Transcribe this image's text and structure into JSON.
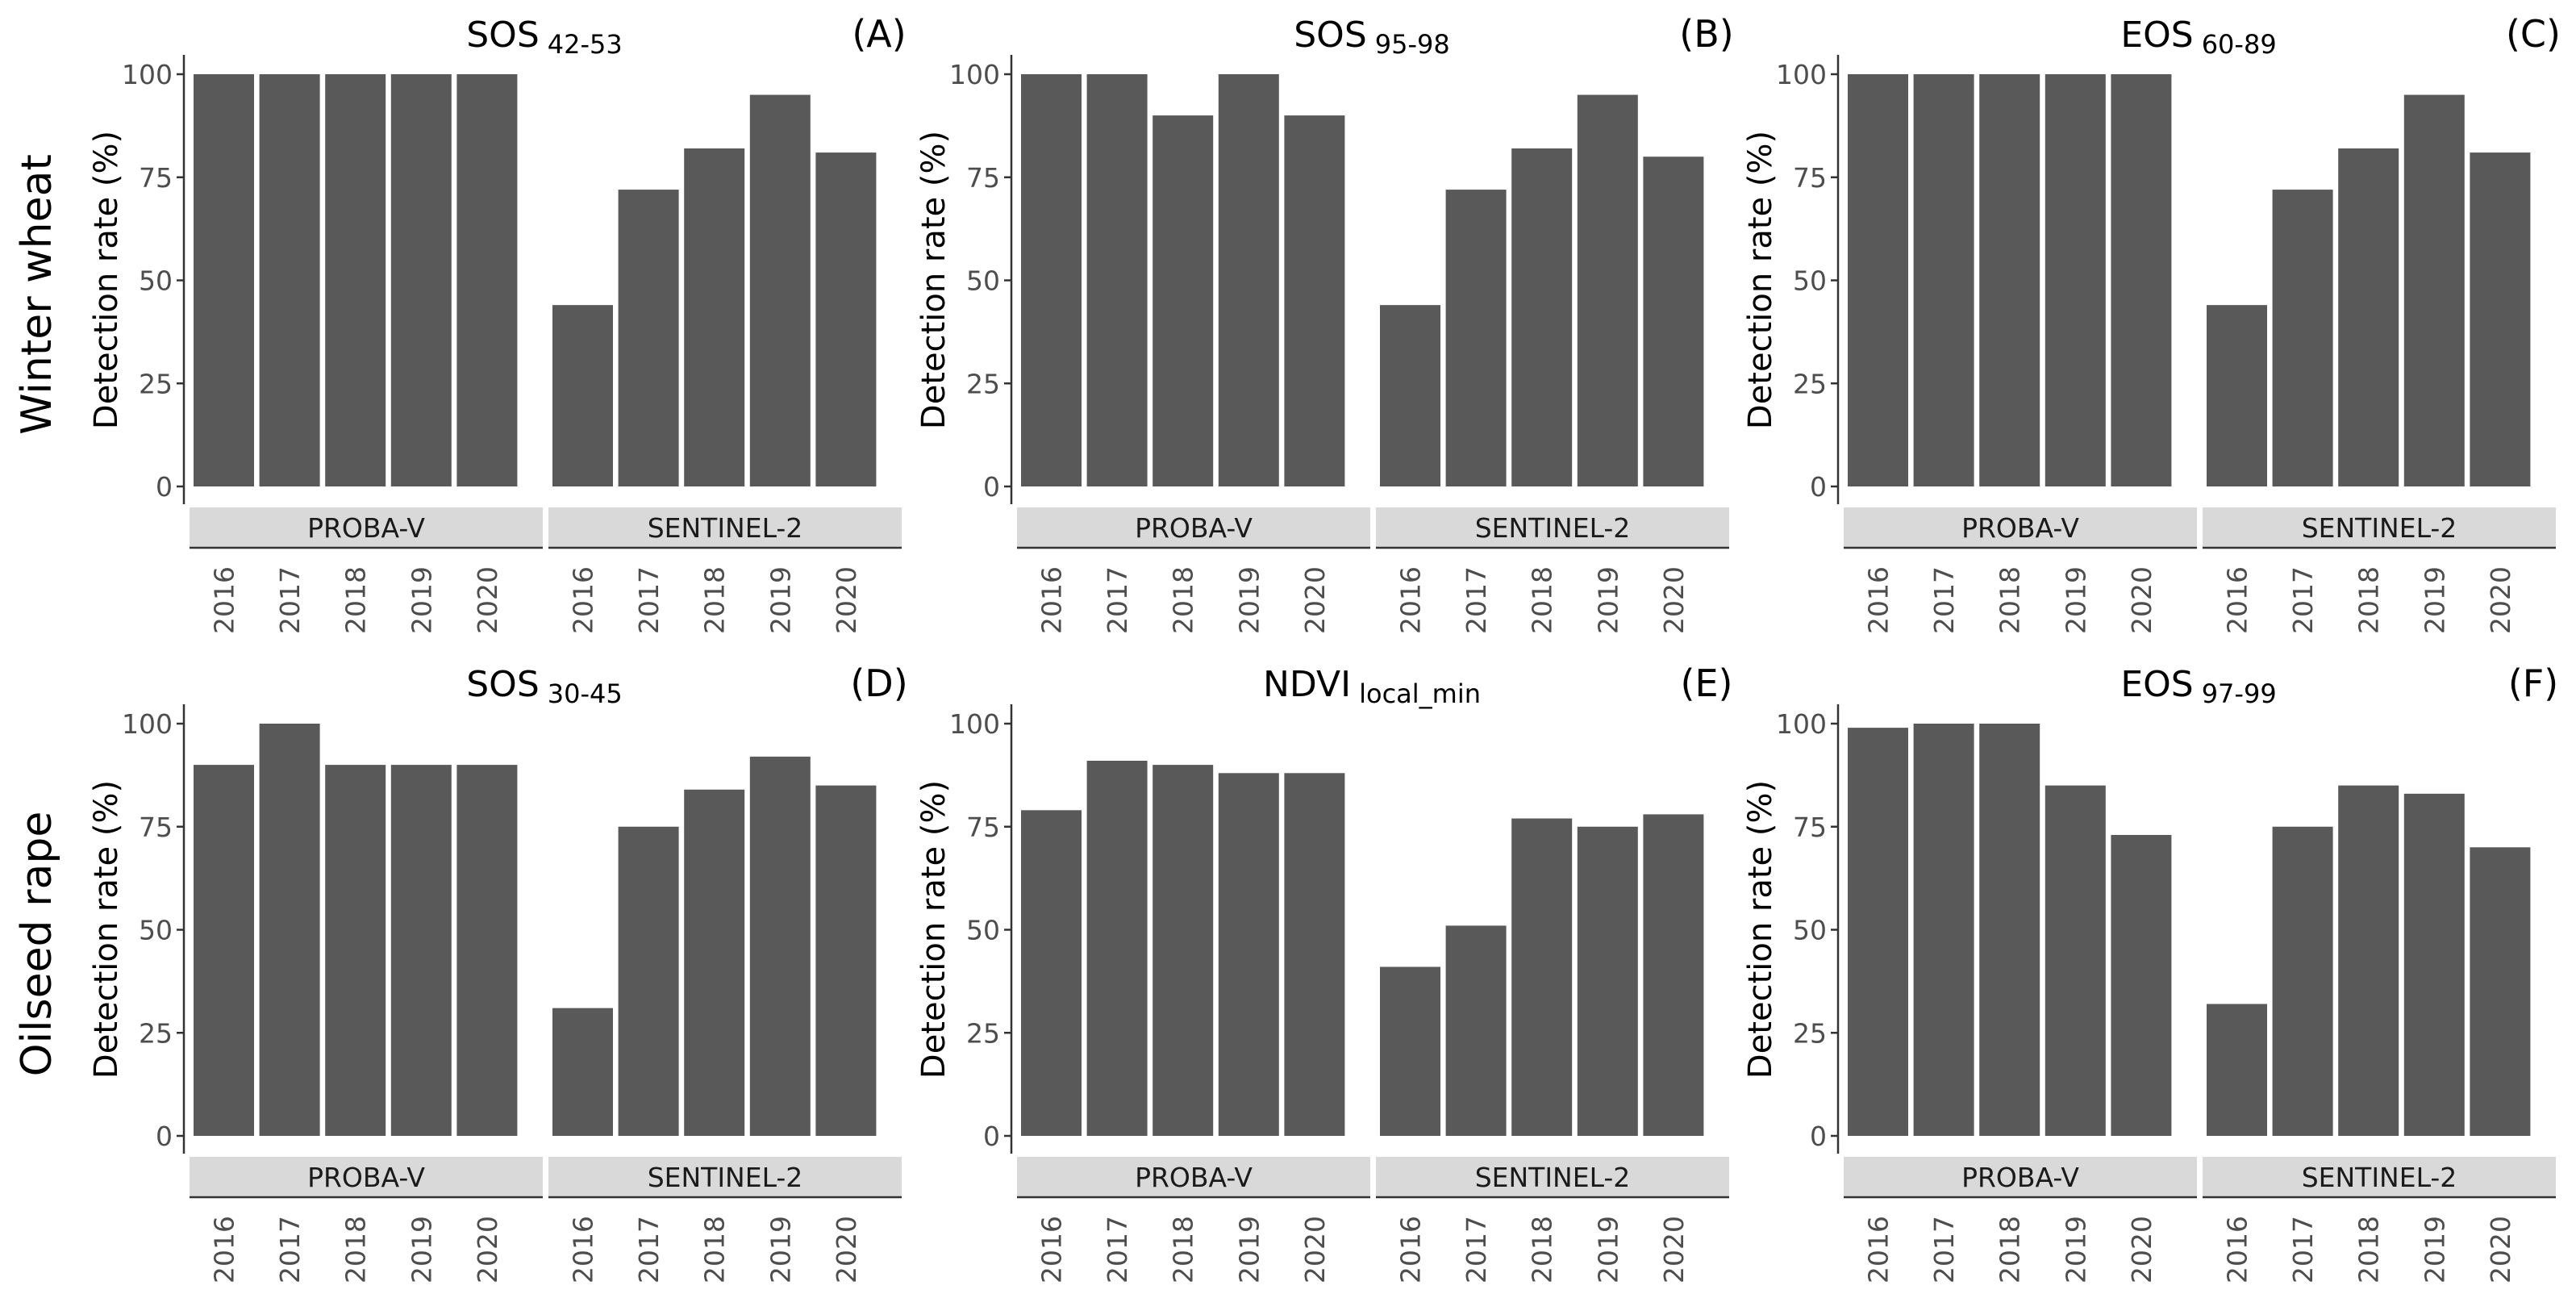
{
  "row_labels": [
    "Winter wheat",
    "Oilseed rape"
  ],
  "chart_data": [
    {
      "panel": "(A)",
      "title_main": "SOS",
      "title_sub": "42-53",
      "type": "bar",
      "ylabel": "Detection rate (%)",
      "ylim": [
        0,
        100
      ],
      "yticks": [
        0,
        25,
        50,
        75,
        100
      ],
      "grid": false,
      "facets": [
        {
          "name": "PROBA-V",
          "categories": [
            "2016",
            "2017",
            "2018",
            "2019",
            "2020"
          ],
          "values": [
            100,
            100,
            100,
            100,
            100
          ]
        },
        {
          "name": "SENTINEL-2",
          "categories": [
            "2016",
            "2017",
            "2018",
            "2019",
            "2020"
          ],
          "values": [
            44,
            72,
            82,
            95,
            81
          ]
        }
      ]
    },
    {
      "panel": "(B)",
      "title_main": "SOS",
      "title_sub": "95-98",
      "type": "bar",
      "ylabel": "Detection rate (%)",
      "ylim": [
        0,
        100
      ],
      "yticks": [
        0,
        25,
        50,
        75,
        100
      ],
      "grid": false,
      "facets": [
        {
          "name": "PROBA-V",
          "categories": [
            "2016",
            "2017",
            "2018",
            "2019",
            "2020"
          ],
          "values": [
            100,
            100,
            90,
            100,
            90
          ]
        },
        {
          "name": "SENTINEL-2",
          "categories": [
            "2016",
            "2017",
            "2018",
            "2019",
            "2020"
          ],
          "values": [
            44,
            72,
            82,
            95,
            80
          ]
        }
      ]
    },
    {
      "panel": "(C)",
      "title_main": "EOS",
      "title_sub": "60-89",
      "type": "bar",
      "ylabel": "Detection rate (%)",
      "ylim": [
        0,
        100
      ],
      "yticks": [
        0,
        25,
        50,
        75,
        100
      ],
      "grid": false,
      "facets": [
        {
          "name": "PROBA-V",
          "categories": [
            "2016",
            "2017",
            "2018",
            "2019",
            "2020"
          ],
          "values": [
            100,
            100,
            100,
            100,
            100
          ]
        },
        {
          "name": "SENTINEL-2",
          "categories": [
            "2016",
            "2017",
            "2018",
            "2019",
            "2020"
          ],
          "values": [
            44,
            72,
            82,
            95,
            81
          ]
        }
      ]
    },
    {
      "panel": "(D)",
      "title_main": "SOS",
      "title_sub": "30-45",
      "type": "bar",
      "ylabel": "Detection rate (%)",
      "ylim": [
        0,
        100
      ],
      "yticks": [
        0,
        25,
        50,
        75,
        100
      ],
      "grid": false,
      "facets": [
        {
          "name": "PROBA-V",
          "categories": [
            "2016",
            "2017",
            "2018",
            "2019",
            "2020"
          ],
          "values": [
            90,
            100,
            90,
            90,
            90
          ]
        },
        {
          "name": "SENTINEL-2",
          "categories": [
            "2016",
            "2017",
            "2018",
            "2019",
            "2020"
          ],
          "values": [
            31,
            75,
            84,
            92,
            85
          ]
        }
      ]
    },
    {
      "panel": "(E)",
      "title_main": "NDVI",
      "title_sub": "local_min",
      "type": "bar",
      "ylabel": "Detection rate (%)",
      "ylim": [
        0,
        100
      ],
      "yticks": [
        0,
        25,
        50,
        75,
        100
      ],
      "grid": false,
      "facets": [
        {
          "name": "PROBA-V",
          "categories": [
            "2016",
            "2017",
            "2018",
            "2019",
            "2020"
          ],
          "values": [
            79,
            91,
            90,
            88,
            88
          ]
        },
        {
          "name": "SENTINEL-2",
          "categories": [
            "2016",
            "2017",
            "2018",
            "2019",
            "2020"
          ],
          "values": [
            41,
            51,
            77,
            75,
            78
          ]
        }
      ]
    },
    {
      "panel": "(F)",
      "title_main": "EOS",
      "title_sub": "97-99",
      "type": "bar",
      "ylabel": "Detection rate (%)",
      "ylim": [
        0,
        100
      ],
      "yticks": [
        0,
        25,
        50,
        75,
        100
      ],
      "grid": false,
      "facets": [
        {
          "name": "PROBA-V",
          "categories": [
            "2016",
            "2017",
            "2018",
            "2019",
            "2020"
          ],
          "values": [
            99,
            100,
            100,
            85,
            73
          ]
        },
        {
          "name": "SENTINEL-2",
          "categories": [
            "2016",
            "2017",
            "2018",
            "2019",
            "2020"
          ],
          "values": [
            32,
            75,
            85,
            83,
            70
          ]
        }
      ]
    }
  ],
  "colors": {
    "bar": "#595959",
    "strip": "#d9d9d9",
    "axis": "#333333",
    "tick_text": "#4d4d4d",
    "background": "#ffffff"
  }
}
